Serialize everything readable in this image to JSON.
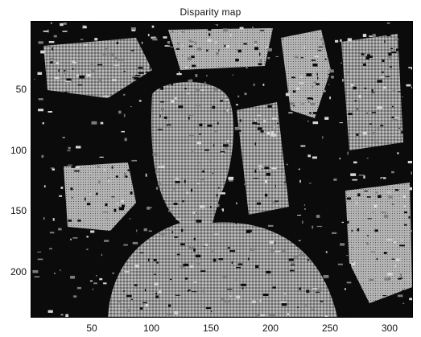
{
  "figure": {
    "title": "Disparity map",
    "colors": {
      "background": "#ffffff",
      "dark": "#0b0b0b",
      "mid": "#8a8a8a",
      "light": "#d2d2d2"
    }
  },
  "axes": {
    "y_ticks": [
      "50",
      "100",
      "150",
      "200"
    ],
    "x_ticks": [
      "50",
      "100",
      "150",
      "200",
      "250",
      "300"
    ]
  },
  "chart_data": {
    "type": "heatmap",
    "title": "Disparity map",
    "xlabel": "",
    "ylabel": "",
    "xlim": [
      1,
      320
    ],
    "ylim": [
      240,
      1
    ],
    "x_tick_values": [
      50,
      100,
      150,
      200,
      250,
      300
    ],
    "y_tick_values": [
      50,
      100,
      150,
      200
    ],
    "colormap": "gray",
    "grid": false
  }
}
